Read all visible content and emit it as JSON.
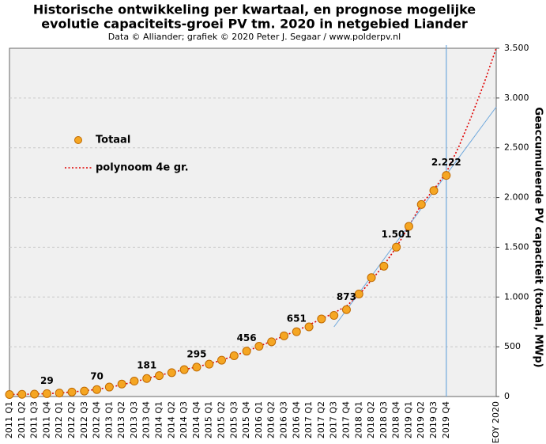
{
  "chart_data": {
    "type": "line",
    "title_lines": [
      "Historische  ontwikkeling  per kwartaal, en prognose mogelijke",
      "evolutie  capaciteits-groei  PV tm. 2020 in netgebied Liander"
    ],
    "subtitle": "Data © Alliander; grafiek © 2020 Peter J. Segaar / www.polderpv.nl",
    "y_label": "Geaccumuleerde  PV  capaciteit  (totaal, MWp)",
    "categories": [
      "2011 Q1",
      "2011 Q2",
      "2011 Q3",
      "2011 Q4",
      "2012 Q1",
      "2012 Q2",
      "2012 Q3",
      "2012 Q4",
      "2013 Q1",
      "2013 Q2",
      "2013 Q3",
      "2013 Q4",
      "2014 Q1",
      "2014 Q2",
      "2014 Q3",
      "2014 Q4",
      "2015 Q1",
      "2015 Q2",
      "2015 Q3",
      "2015 Q4",
      "2016 Q1",
      "2016 Q2",
      "2016 Q3",
      "2016 Q4",
      "2017 Q1",
      "2017 Q2",
      "2017 Q3",
      "2017 Q4",
      "2018 Q1",
      "2018 Q2",
      "2018 Q3",
      "2018 Q4",
      "2019 Q1",
      "2019 Q2",
      "2019 Q3",
      "2019 Q4",
      null,
      null,
      null,
      "EOY 2020"
    ],
    "series": [
      {
        "name": "Totaal",
        "color": "#f5a623",
        "marker": "circle",
        "values": [
          20,
          22,
          24,
          29,
          35,
          45,
          55,
          70,
          95,
          125,
          155,
          181,
          210,
          240,
          270,
          295,
          325,
          365,
          410,
          456,
          505,
          550,
          610,
          651,
          700,
          780,
          815,
          873,
          1030,
          1195,
          1310,
          1501,
          1710,
          1930,
          2070,
          2222,
          null,
          null,
          null,
          null
        ],
        "value_labels": [
          null,
          null,
          null,
          "29",
          null,
          null,
          null,
          "70",
          null,
          null,
          null,
          "181",
          null,
          null,
          null,
          "295",
          null,
          null,
          null,
          "456",
          null,
          null,
          null,
          "651",
          null,
          null,
          null,
          "873",
          null,
          null,
          null,
          "1.501",
          null,
          null,
          null,
          "2.222",
          null,
          null,
          null,
          null
        ]
      },
      {
        "name": "polynoom 4e gr.",
        "color": "#e00000",
        "dash": true,
        "values": [
          20,
          22,
          25,
          29,
          36,
          45,
          57,
          72,
          92,
          118,
          148,
          180,
          212,
          242,
          270,
          298,
          328,
          365,
          410,
          455,
          505,
          555,
          610,
          660,
          720,
          780,
          840,
          910,
          1020,
          1170,
          1320,
          1500,
          1710,
          1930,
          2080,
          2250,
          2510,
          2810,
          3140,
          3500
        ]
      },
      {
        "color": "#6fa8dc",
        "values": [
          null,
          null,
          null,
          null,
          null,
          null,
          null,
          null,
          null,
          null,
          null,
          null,
          null,
          null,
          null,
          null,
          null,
          null,
          null,
          null,
          null,
          null,
          null,
          null,
          null,
          null,
          700,
          870,
          1040,
          1210,
          1380,
          1550,
          1720,
          1890,
          2060,
          2230,
          2400,
          2570,
          2740,
          2910
        ]
      }
    ],
    "vline": "2019 Q4",
    "vline_color": "#6fa8dc",
    "ylim": [
      0,
      3500
    ],
    "yticks": [
      0,
      500,
      {
        "value": 1000,
        "label": "1.000"
      },
      {
        "value": 1500,
        "label": "1.500"
      },
      {
        "value": 2000,
        "label": "2.000"
      },
      {
        "value": 2500,
        "label": "2.500"
      },
      {
        "value": 3000,
        "label": "3.000"
      },
      {
        "value": 3500,
        "label": "3.500"
      }
    ],
    "grid": true,
    "legend": "upper left"
  }
}
